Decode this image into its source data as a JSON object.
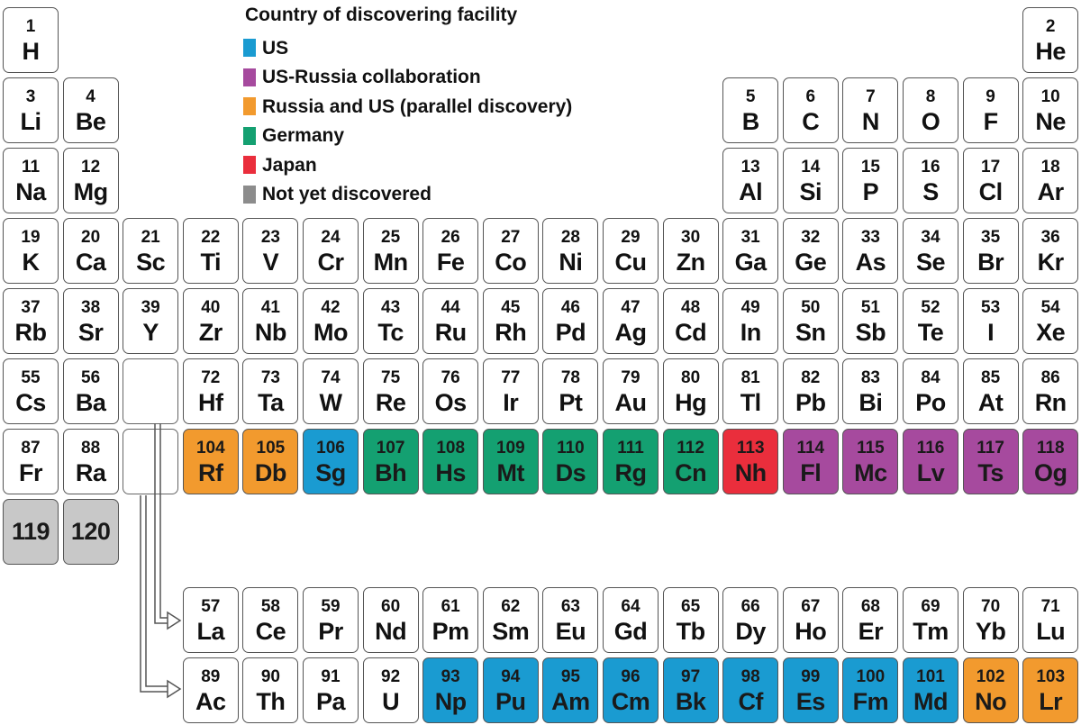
{
  "legend": {
    "title": "Country of discovering facility",
    "items": [
      {
        "key": "us",
        "label": "US",
        "color": "#1a9bd1"
      },
      {
        "key": "usru",
        "label": "US-Russia collaboration",
        "color": "#a64a9e"
      },
      {
        "key": "parallel",
        "label": "Russia and US (parallel discovery)",
        "color": "#f29a2e"
      },
      {
        "key": "germany",
        "label": "Germany",
        "color": "#14a071"
      },
      {
        "key": "japan",
        "label": "Japan",
        "color": "#ea2e3c"
      },
      {
        "key": "undiscovered",
        "label": "Not yet discovered",
        "color": "#8c8c8c"
      }
    ]
  },
  "colors": {
    "undiscovered_cell": "#c8c8c8",
    "default_cell": "#ffffff",
    "border": "#555555"
  },
  "elements": [
    {
      "n": "1",
      "s": "H",
      "row": 0,
      "col": 0
    },
    {
      "n": "2",
      "s": "He",
      "row": 0,
      "col": 17
    },
    {
      "n": "3",
      "s": "Li",
      "row": 1,
      "col": 0
    },
    {
      "n": "4",
      "s": "Be",
      "row": 1,
      "col": 1
    },
    {
      "n": "5",
      "s": "B",
      "row": 1,
      "col": 12
    },
    {
      "n": "6",
      "s": "C",
      "row": 1,
      "col": 13
    },
    {
      "n": "7",
      "s": "N",
      "row": 1,
      "col": 14
    },
    {
      "n": "8",
      "s": "O",
      "row": 1,
      "col": 15
    },
    {
      "n": "9",
      "s": "F",
      "row": 1,
      "col": 16
    },
    {
      "n": "10",
      "s": "Ne",
      "row": 1,
      "col": 17
    },
    {
      "n": "11",
      "s": "Na",
      "row": 2,
      "col": 0
    },
    {
      "n": "12",
      "s": "Mg",
      "row": 2,
      "col": 1
    },
    {
      "n": "13",
      "s": "Al",
      "row": 2,
      "col": 12
    },
    {
      "n": "14",
      "s": "Si",
      "row": 2,
      "col": 13
    },
    {
      "n": "15",
      "s": "P",
      "row": 2,
      "col": 14
    },
    {
      "n": "16",
      "s": "S",
      "row": 2,
      "col": 15
    },
    {
      "n": "17",
      "s": "Cl",
      "row": 2,
      "col": 16
    },
    {
      "n": "18",
      "s": "Ar",
      "row": 2,
      "col": 17
    },
    {
      "n": "19",
      "s": "K",
      "row": 3,
      "col": 0
    },
    {
      "n": "20",
      "s": "Ca",
      "row": 3,
      "col": 1
    },
    {
      "n": "21",
      "s": "Sc",
      "row": 3,
      "col": 2
    },
    {
      "n": "22",
      "s": "Ti",
      "row": 3,
      "col": 3
    },
    {
      "n": "23",
      "s": "V",
      "row": 3,
      "col": 4
    },
    {
      "n": "24",
      "s": "Cr",
      "row": 3,
      "col": 5
    },
    {
      "n": "25",
      "s": "Mn",
      "row": 3,
      "col": 6
    },
    {
      "n": "26",
      "s": "Fe",
      "row": 3,
      "col": 7
    },
    {
      "n": "27",
      "s": "Co",
      "row": 3,
      "col": 8
    },
    {
      "n": "28",
      "s": "Ni",
      "row": 3,
      "col": 9
    },
    {
      "n": "29",
      "s": "Cu",
      "row": 3,
      "col": 10
    },
    {
      "n": "30",
      "s": "Zn",
      "row": 3,
      "col": 11
    },
    {
      "n": "31",
      "s": "Ga",
      "row": 3,
      "col": 12
    },
    {
      "n": "32",
      "s": "Ge",
      "row": 3,
      "col": 13
    },
    {
      "n": "33",
      "s": "As",
      "row": 3,
      "col": 14
    },
    {
      "n": "34",
      "s": "Se",
      "row": 3,
      "col": 15
    },
    {
      "n": "35",
      "s": "Br",
      "row": 3,
      "col": 16
    },
    {
      "n": "36",
      "s": "Kr",
      "row": 3,
      "col": 17
    },
    {
      "n": "37",
      "s": "Rb",
      "row": 4,
      "col": 0
    },
    {
      "n": "38",
      "s": "Sr",
      "row": 4,
      "col": 1
    },
    {
      "n": "39",
      "s": "Y",
      "row": 4,
      "col": 2
    },
    {
      "n": "40",
      "s": "Zr",
      "row": 4,
      "col": 3
    },
    {
      "n": "41",
      "s": "Nb",
      "row": 4,
      "col": 4
    },
    {
      "n": "42",
      "s": "Mo",
      "row": 4,
      "col": 5
    },
    {
      "n": "43",
      "s": "Tc",
      "row": 4,
      "col": 6
    },
    {
      "n": "44",
      "s": "Ru",
      "row": 4,
      "col": 7
    },
    {
      "n": "45",
      "s": "Rh",
      "row": 4,
      "col": 8
    },
    {
      "n": "46",
      "s": "Pd",
      "row": 4,
      "col": 9
    },
    {
      "n": "47",
      "s": "Ag",
      "row": 4,
      "col": 10
    },
    {
      "n": "48",
      "s": "Cd",
      "row": 4,
      "col": 11
    },
    {
      "n": "49",
      "s": "In",
      "row": 4,
      "col": 12
    },
    {
      "n": "50",
      "s": "Sn",
      "row": 4,
      "col": 13
    },
    {
      "n": "51",
      "s": "Sb",
      "row": 4,
      "col": 14
    },
    {
      "n": "52",
      "s": "Te",
      "row": 4,
      "col": 15
    },
    {
      "n": "53",
      "s": "I",
      "row": 4,
      "col": 16
    },
    {
      "n": "54",
      "s": "Xe",
      "row": 4,
      "col": 17
    },
    {
      "n": "55",
      "s": "Cs",
      "row": 5,
      "col": 0
    },
    {
      "n": "56",
      "s": "Ba",
      "row": 5,
      "col": 1
    },
    {
      "n": "",
      "s": "",
      "row": 5,
      "col": 2,
      "empty": true
    },
    {
      "n": "72",
      "s": "Hf",
      "row": 5,
      "col": 3
    },
    {
      "n": "73",
      "s": "Ta",
      "row": 5,
      "col": 4
    },
    {
      "n": "74",
      "s": "W",
      "row": 5,
      "col": 5
    },
    {
      "n": "75",
      "s": "Re",
      "row": 5,
      "col": 6
    },
    {
      "n": "76",
      "s": "Os",
      "row": 5,
      "col": 7
    },
    {
      "n": "77",
      "s": "Ir",
      "row": 5,
      "col": 8
    },
    {
      "n": "78",
      "s": "Pt",
      "row": 5,
      "col": 9
    },
    {
      "n": "79",
      "s": "Au",
      "row": 5,
      "col": 10
    },
    {
      "n": "80",
      "s": "Hg",
      "row": 5,
      "col": 11
    },
    {
      "n": "81",
      "s": "Tl",
      "row": 5,
      "col": 12
    },
    {
      "n": "82",
      "s": "Pb",
      "row": 5,
      "col": 13
    },
    {
      "n": "83",
      "s": "Bi",
      "row": 5,
      "col": 14
    },
    {
      "n": "84",
      "s": "Po",
      "row": 5,
      "col": 15
    },
    {
      "n": "85",
      "s": "At",
      "row": 5,
      "col": 16
    },
    {
      "n": "86",
      "s": "Rn",
      "row": 5,
      "col": 17
    },
    {
      "n": "87",
      "s": "Fr",
      "row": 6,
      "col": 0
    },
    {
      "n": "88",
      "s": "Ra",
      "row": 6,
      "col": 1
    },
    {
      "n": "",
      "s": "",
      "row": 6,
      "col": 2,
      "empty": true
    },
    {
      "n": "104",
      "s": "Rf",
      "row": 6,
      "col": 3,
      "group": "parallel"
    },
    {
      "n": "105",
      "s": "Db",
      "row": 6,
      "col": 4,
      "group": "parallel"
    },
    {
      "n": "106",
      "s": "Sg",
      "row": 6,
      "col": 5,
      "group": "us"
    },
    {
      "n": "107",
      "s": "Bh",
      "row": 6,
      "col": 6,
      "group": "germany"
    },
    {
      "n": "108",
      "s": "Hs",
      "row": 6,
      "col": 7,
      "group": "germany"
    },
    {
      "n": "109",
      "s": "Mt",
      "row": 6,
      "col": 8,
      "group": "germany"
    },
    {
      "n": "110",
      "s": "Ds",
      "row": 6,
      "col": 9,
      "group": "germany"
    },
    {
      "n": "111",
      "s": "Rg",
      "row": 6,
      "col": 10,
      "group": "germany"
    },
    {
      "n": "112",
      "s": "Cn",
      "row": 6,
      "col": 11,
      "group": "germany"
    },
    {
      "n": "113",
      "s": "Nh",
      "row": 6,
      "col": 12,
      "group": "japan"
    },
    {
      "n": "114",
      "s": "Fl",
      "row": 6,
      "col": 13,
      "group": "usru"
    },
    {
      "n": "115",
      "s": "Mc",
      "row": 6,
      "col": 14,
      "group": "usru"
    },
    {
      "n": "116",
      "s": "Lv",
      "row": 6,
      "col": 15,
      "group": "usru"
    },
    {
      "n": "117",
      "s": "Ts",
      "row": 6,
      "col": 16,
      "group": "usru"
    },
    {
      "n": "118",
      "s": "Og",
      "row": 6,
      "col": 17,
      "group": "usru"
    },
    {
      "n": "",
      "s": "119",
      "row": 7,
      "col": 0,
      "group": "undiscovered",
      "big": true
    },
    {
      "n": "",
      "s": "120",
      "row": 7,
      "col": 1,
      "group": "undiscovered",
      "big": true
    },
    {
      "n": "57",
      "s": "La",
      "row": 8,
      "col": 3
    },
    {
      "n": "58",
      "s": "Ce",
      "row": 8,
      "col": 4
    },
    {
      "n": "59",
      "s": "Pr",
      "row": 8,
      "col": 5
    },
    {
      "n": "60",
      "s": "Nd",
      "row": 8,
      "col": 6
    },
    {
      "n": "61",
      "s": "Pm",
      "row": 8,
      "col": 7
    },
    {
      "n": "62",
      "s": "Sm",
      "row": 8,
      "col": 8
    },
    {
      "n": "63",
      "s": "Eu",
      "row": 8,
      "col": 9
    },
    {
      "n": "64",
      "s": "Gd",
      "row": 8,
      "col": 10
    },
    {
      "n": "65",
      "s": "Tb",
      "row": 8,
      "col": 11
    },
    {
      "n": "66",
      "s": "Dy",
      "row": 8,
      "col": 12
    },
    {
      "n": "67",
      "s": "Ho",
      "row": 8,
      "col": 13
    },
    {
      "n": "68",
      "s": "Er",
      "row": 8,
      "col": 14
    },
    {
      "n": "69",
      "s": "Tm",
      "row": 8,
      "col": 15
    },
    {
      "n": "70",
      "s": "Yb",
      "row": 8,
      "col": 16
    },
    {
      "n": "71",
      "s": "Lu",
      "row": 8,
      "col": 17
    },
    {
      "n": "89",
      "s": "Ac",
      "row": 9,
      "col": 3
    },
    {
      "n": "90",
      "s": "Th",
      "row": 9,
      "col": 4
    },
    {
      "n": "91",
      "s": "Pa",
      "row": 9,
      "col": 5
    },
    {
      "n": "92",
      "s": "U",
      "row": 9,
      "col": 6
    },
    {
      "n": "93",
      "s": "Np",
      "row": 9,
      "col": 7,
      "group": "us"
    },
    {
      "n": "94",
      "s": "Pu",
      "row": 9,
      "col": 8,
      "group": "us"
    },
    {
      "n": "95",
      "s": "Am",
      "row": 9,
      "col": 9,
      "group": "us"
    },
    {
      "n": "96",
      "s": "Cm",
      "row": 9,
      "col": 10,
      "group": "us"
    },
    {
      "n": "97",
      "s": "Bk",
      "row": 9,
      "col": 11,
      "group": "us"
    },
    {
      "n": "98",
      "s": "Cf",
      "row": 9,
      "col": 12,
      "group": "us"
    },
    {
      "n": "99",
      "s": "Es",
      "row": 9,
      "col": 13,
      "group": "us"
    },
    {
      "n": "100",
      "s": "Fm",
      "row": 9,
      "col": 14,
      "group": "us"
    },
    {
      "n": "101",
      "s": "Md",
      "row": 9,
      "col": 15,
      "group": "us"
    },
    {
      "n": "102",
      "s": "No",
      "row": 9,
      "col": 16,
      "group": "parallel"
    },
    {
      "n": "103",
      "s": "Lr",
      "row": 9,
      "col": 17,
      "group": "parallel"
    }
  ]
}
